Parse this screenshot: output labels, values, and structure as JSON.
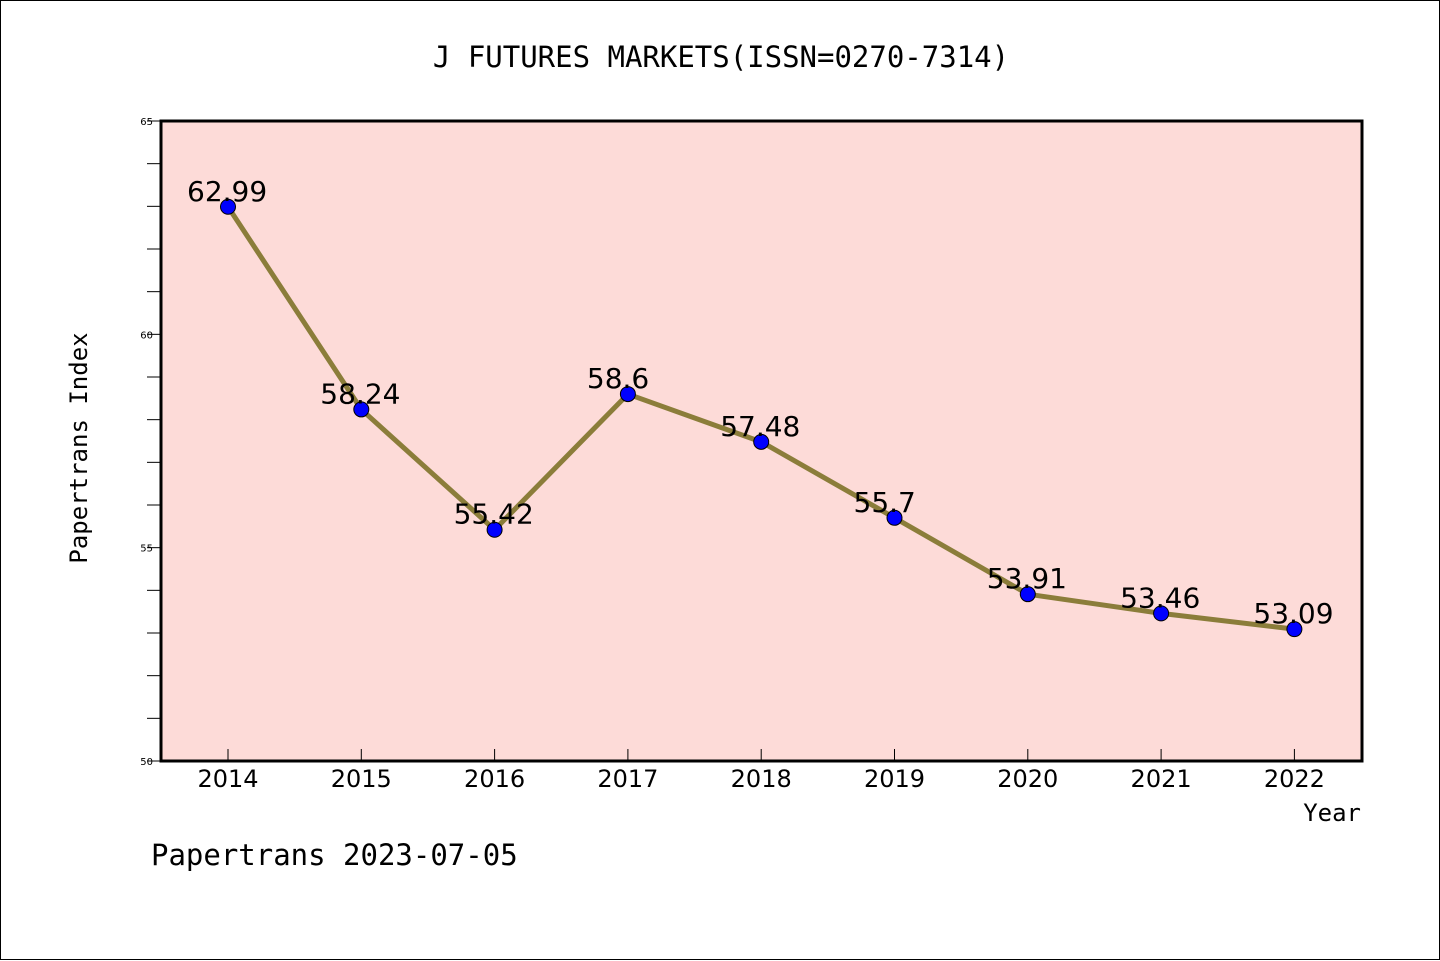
{
  "chart_data": {
    "type": "line",
    "title": "J FUTURES MARKETS(ISSN=0270-7314)",
    "xlabel": "Year",
    "ylabel": "Papertrans Index",
    "categories": [
      "2014",
      "2015",
      "2016",
      "2017",
      "2018",
      "2019",
      "2020",
      "2021",
      "2022"
    ],
    "series": [
      {
        "values": [
          62.99,
          58.24,
          55.42,
          58.6,
          57.48,
          55.7,
          53.91,
          53.46,
          53.09
        ],
        "data_labels": [
          "62.99",
          "58.24",
          "55.42",
          "58.6",
          "57.48",
          "55.7",
          "53.91",
          "53.46",
          "53.09"
        ]
      }
    ],
    "ylim": [
      50,
      65
    ],
    "y_ticks": [
      "50",
      "55",
      "60",
      "65"
    ],
    "grid": false,
    "legend": "none",
    "colors": {
      "line": "#8b7d3a",
      "marker": "#0000ff",
      "plot_background": "#fddbd8"
    }
  },
  "footer": {
    "credit": "Papertrans 2023-07-05"
  }
}
